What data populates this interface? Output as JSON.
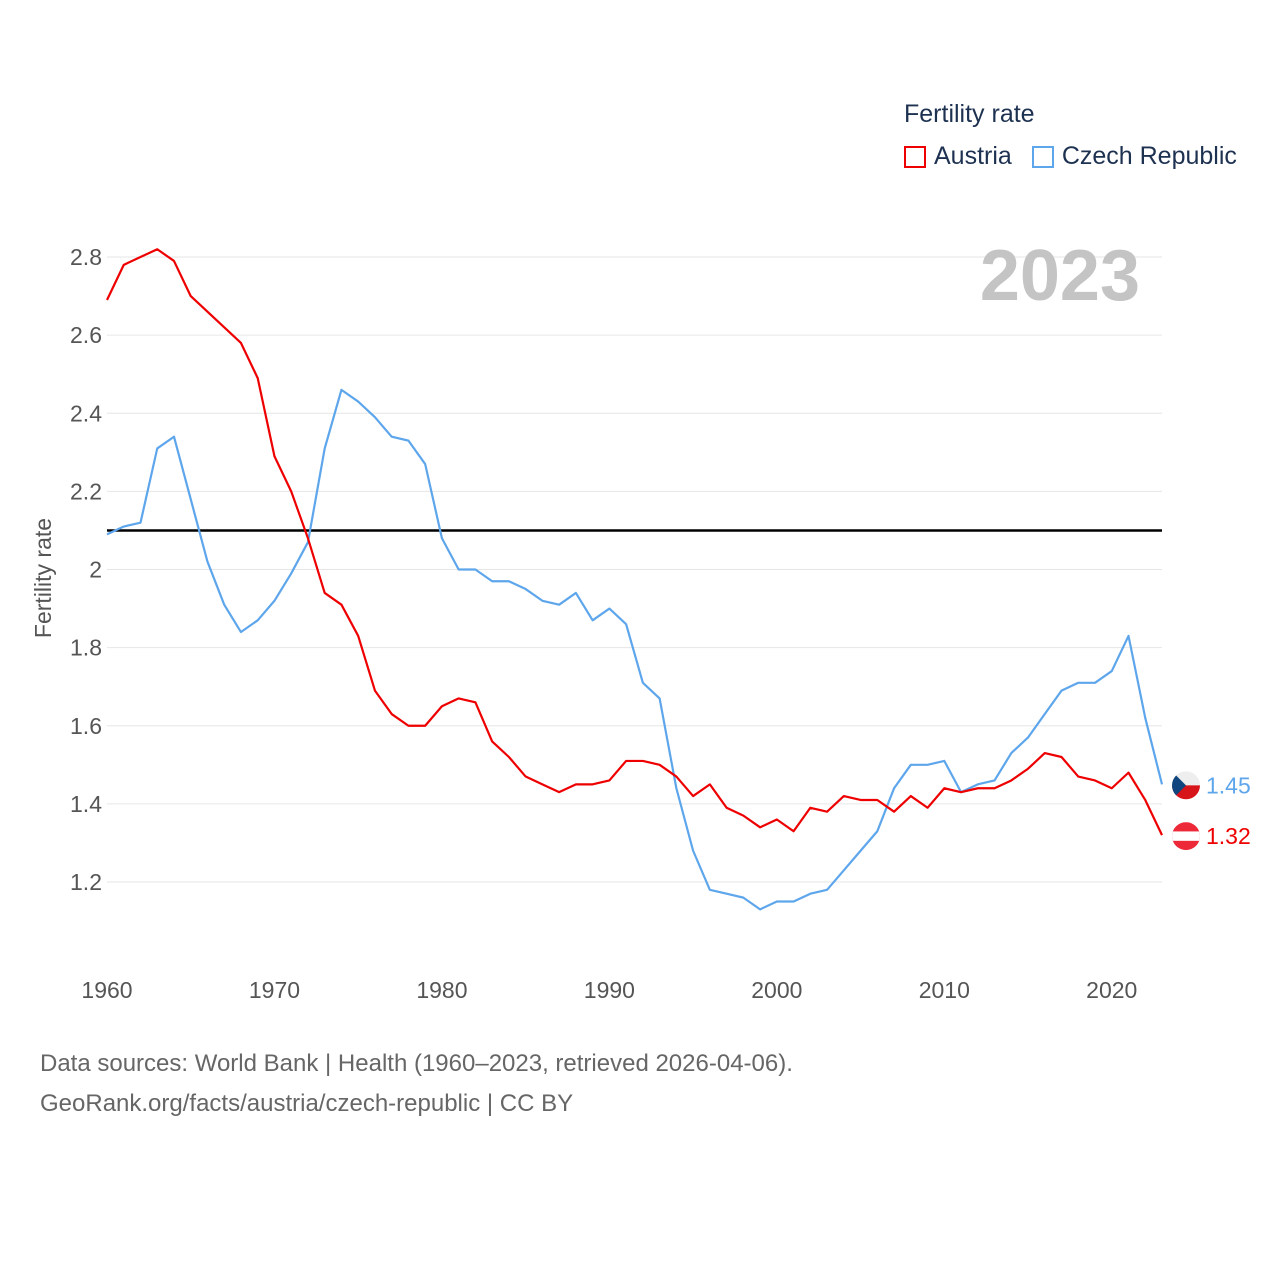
{
  "chart_data": {
    "type": "line",
    "legend_title": "Fertility rate",
    "ylabel": "Fertility rate",
    "xlabel": "",
    "year_label": "2023",
    "ylim": [
      1.0,
      2.9
    ],
    "xlim": [
      1960,
      2023
    ],
    "yticks": [
      1.2,
      1.4,
      1.6,
      1.8,
      2,
      2.2,
      2.4,
      2.6,
      2.8
    ],
    "ytick_labels": [
      "1.2",
      "1.4",
      "1.6",
      "1.8",
      "2",
      "2.2",
      "2.4",
      "2.6",
      "2.8"
    ],
    "xticks": [
      1960,
      1970,
      1980,
      1990,
      2000,
      2010,
      2020
    ],
    "xtick_labels": [
      "1960",
      "1970",
      "1980",
      "1990",
      "2000",
      "2010",
      "2020"
    ],
    "grid": true,
    "legend_position": "top-right",
    "reference_line": 2.1,
    "x_start": 1960,
    "series": [
      {
        "name": "Austria",
        "color": "#ee0000",
        "end_label": "1.32",
        "values": [
          2.69,
          2.78,
          2.8,
          2.82,
          2.79,
          2.7,
          2.66,
          2.62,
          2.58,
          2.49,
          2.29,
          2.2,
          2.08,
          1.94,
          1.91,
          1.83,
          1.69,
          1.63,
          1.6,
          1.6,
          1.65,
          1.67,
          1.66,
          1.56,
          1.52,
          1.47,
          1.45,
          1.43,
          1.45,
          1.45,
          1.46,
          1.51,
          1.51,
          1.5,
          1.47,
          1.42,
          1.45,
          1.39,
          1.37,
          1.34,
          1.36,
          1.33,
          1.39,
          1.38,
          1.42,
          1.41,
          1.41,
          1.38,
          1.42,
          1.39,
          1.44,
          1.43,
          1.44,
          1.44,
          1.46,
          1.49,
          1.53,
          1.52,
          1.47,
          1.46,
          1.44,
          1.48,
          1.41,
          1.32
        ]
      },
      {
        "name": "Czech Republic",
        "color": "#5ea6ec",
        "end_label": "1.45",
        "values": [
          2.09,
          2.11,
          2.12,
          2.31,
          2.34,
          2.18,
          2.02,
          1.91,
          1.84,
          1.87,
          1.92,
          1.99,
          2.07,
          2.31,
          2.46,
          2.43,
          2.39,
          2.34,
          2.33,
          2.27,
          2.08,
          2.0,
          2.0,
          1.97,
          1.97,
          1.95,
          1.92,
          1.91,
          1.94,
          1.87,
          1.9,
          1.86,
          1.71,
          1.67,
          1.44,
          1.28,
          1.18,
          1.17,
          1.16,
          1.13,
          1.15,
          1.15,
          1.17,
          1.18,
          1.23,
          1.28,
          1.33,
          1.44,
          1.5,
          1.5,
          1.51,
          1.43,
          1.45,
          1.46,
          1.53,
          1.57,
          1.63,
          1.69,
          1.71,
          1.71,
          1.74,
          1.83,
          1.62,
          1.45
        ]
      }
    ]
  },
  "footer": {
    "line1": "Data sources: World Bank | Health (1960–2023, retrieved 2026-04-06).",
    "line2": "GeoRank.org/facts/austria/czech-republic | CC BY"
  }
}
